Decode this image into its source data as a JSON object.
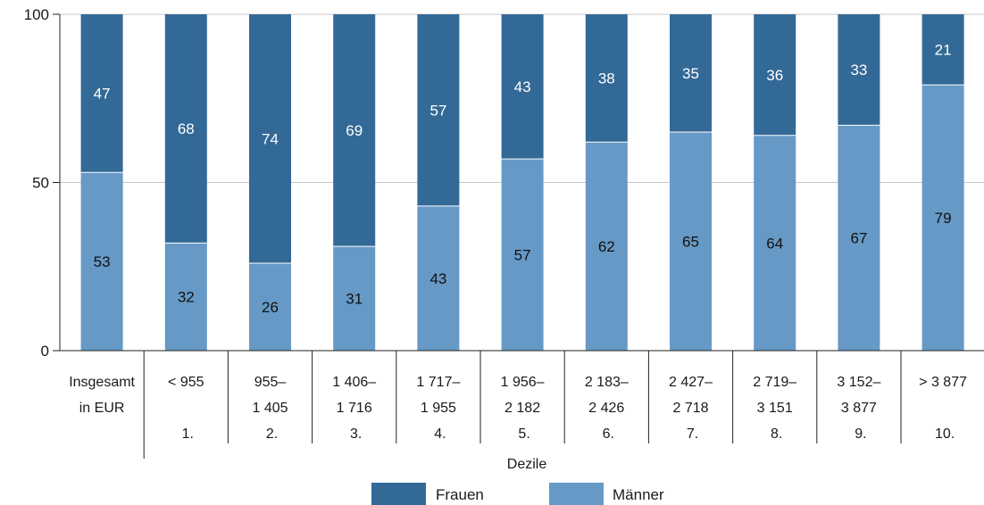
{
  "chart_data": {
    "type": "bar",
    "stacked": true,
    "ylim": [
      0,
      100
    ],
    "yticks": [
      0,
      50,
      100
    ],
    "xlabel": "Dezile",
    "grid": true,
    "legend_position": "bottom",
    "categories": [
      {
        "lines": [
          "Insgesamt",
          "in EUR"
        ],
        "decile": ""
      },
      {
        "lines": [
          "< 955",
          ""
        ],
        "decile": "1."
      },
      {
        "lines": [
          "955–",
          "1 405"
        ],
        "decile": "2."
      },
      {
        "lines": [
          "1 406–",
          "1 716"
        ],
        "decile": "3."
      },
      {
        "lines": [
          "1 717–",
          "1 955"
        ],
        "decile": "4."
      },
      {
        "lines": [
          "1 956–",
          "2 182"
        ],
        "decile": "5."
      },
      {
        "lines": [
          "2 183–",
          "2 426"
        ],
        "decile": "6."
      },
      {
        "lines": [
          "2 427–",
          "2 718"
        ],
        "decile": "7."
      },
      {
        "lines": [
          "2 719–",
          "3 151"
        ],
        "decile": "8."
      },
      {
        "lines": [
          "3 152–",
          "3 877"
        ],
        "decile": "9."
      },
      {
        "lines": [
          "> 3 877",
          ""
        ],
        "decile": "10."
      }
    ],
    "series": [
      {
        "name": "Männer",
        "color": "#6699c6",
        "values": [
          53,
          32,
          26,
          31,
          43,
          57,
          62,
          65,
          64,
          67,
          79
        ]
      },
      {
        "name": "Frauen",
        "color": "#336997",
        "values": [
          47,
          68,
          74,
          69,
          57,
          43,
          38,
          35,
          36,
          33,
          21
        ]
      }
    ],
    "legend": [
      {
        "name": "Frauen",
        "color": "#336997"
      },
      {
        "name": "Männer",
        "color": "#6699c6"
      }
    ]
  }
}
